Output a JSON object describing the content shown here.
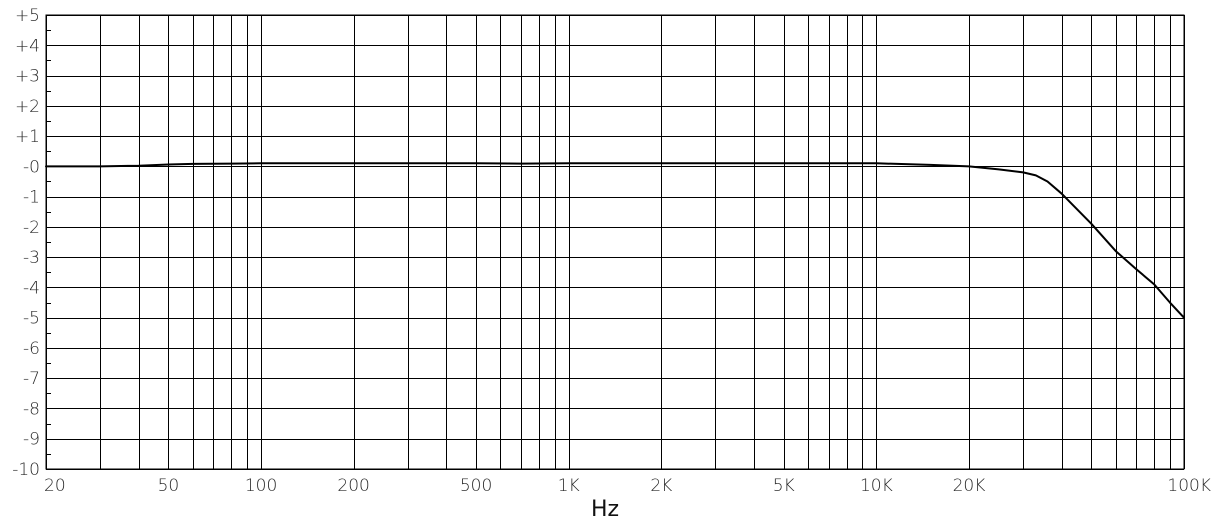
{
  "chart_data": {
    "type": "line",
    "title": "",
    "xlabel": "Hz",
    "ylabel": "",
    "x_scale": "log",
    "xlim": [
      20,
      100000
    ],
    "ylim": [
      -10,
      5
    ],
    "grid": true,
    "x_major_ticks": [
      {
        "value": 20,
        "label": "20"
      },
      {
        "value": 50,
        "label": "50"
      },
      {
        "value": 100,
        "label": "100"
      },
      {
        "value": 200,
        "label": "200"
      },
      {
        "value": 500,
        "label": "500"
      },
      {
        "value": 1000,
        "label": "1K"
      },
      {
        "value": 2000,
        "label": "2K"
      },
      {
        "value": 5000,
        "label": "5K"
      },
      {
        "value": 10000,
        "label": "10K"
      },
      {
        "value": 20000,
        "label": "20K"
      },
      {
        "value": 100000,
        "label": "100K"
      }
    ],
    "x_grid": [
      20,
      30,
      40,
      50,
      60,
      70,
      80,
      90,
      100,
      200,
      300,
      400,
      500,
      600,
      700,
      800,
      900,
      1000,
      2000,
      3000,
      4000,
      5000,
      6000,
      7000,
      8000,
      9000,
      10000,
      20000,
      30000,
      40000,
      50000,
      60000,
      70000,
      80000,
      90000,
      100000
    ],
    "y_ticks": [
      {
        "value": 5,
        "label": "+5"
      },
      {
        "value": 4,
        "label": "+4"
      },
      {
        "value": 3,
        "label": "+3"
      },
      {
        "value": 2,
        "label": "+2"
      },
      {
        "value": 1,
        "label": "+1"
      },
      {
        "value": 0,
        "label": "-0"
      },
      {
        "value": -1,
        "label": "-1"
      },
      {
        "value": -2,
        "label": "-2"
      },
      {
        "value": -3,
        "label": "-3"
      },
      {
        "value": -4,
        "label": "-4"
      },
      {
        "value": -5,
        "label": "-5"
      },
      {
        "value": -6,
        "label": "-6"
      },
      {
        "value": -7,
        "label": "-7"
      },
      {
        "value": -8,
        "label": "-8"
      },
      {
        "value": -9,
        "label": "-9"
      },
      {
        "value": -10,
        "label": "-10"
      }
    ],
    "series": [
      {
        "color": "#000000",
        "x": [
          20,
          30,
          40,
          50,
          60,
          80,
          100,
          150,
          200,
          300,
          500,
          700,
          1000,
          2000,
          3000,
          5000,
          7000,
          10000,
          15000,
          20000,
          25000,
          30000,
          33000,
          36000,
          40000,
          50000,
          60000,
          70000,
          80000,
          90000,
          100000
        ],
        "y": [
          0.0,
          0.0,
          0.02,
          0.06,
          0.08,
          0.09,
          0.1,
          0.1,
          0.1,
          0.1,
          0.1,
          0.09,
          0.1,
          0.1,
          0.1,
          0.1,
          0.1,
          0.1,
          0.05,
          0.0,
          -0.1,
          -0.2,
          -0.3,
          -0.5,
          -0.9,
          -1.9,
          -2.8,
          -3.4,
          -3.9,
          -4.5,
          -5.0
        ]
      }
    ]
  }
}
